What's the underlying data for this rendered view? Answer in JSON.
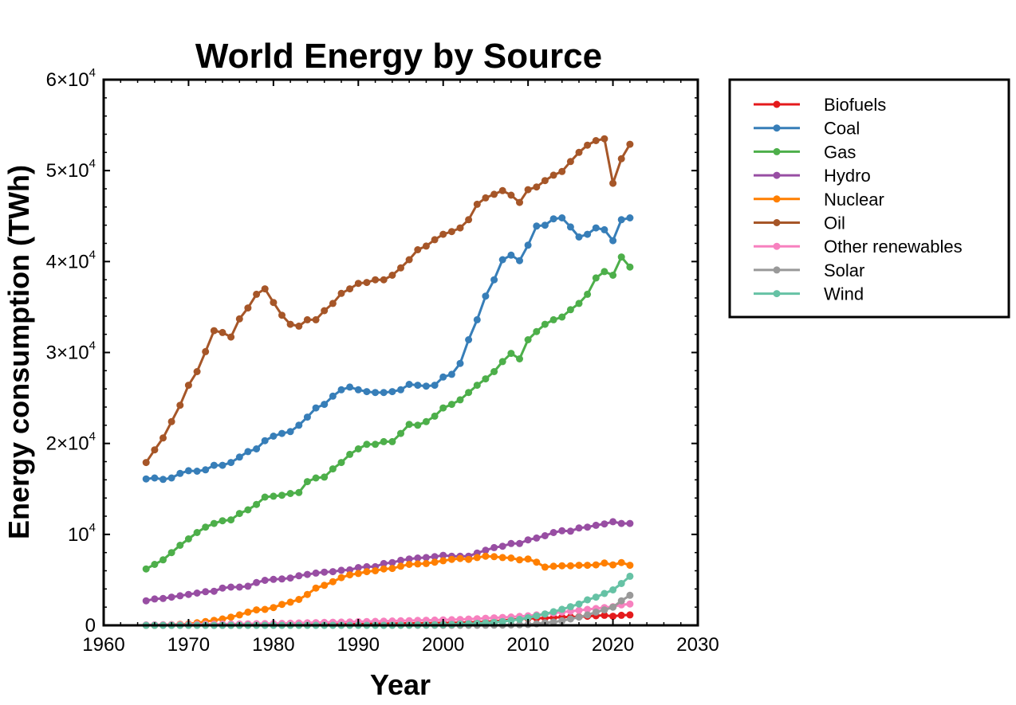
{
  "chart_data": {
    "type": "line",
    "title": "World Energy by Source",
    "xlabel": "Year",
    "ylabel": "Energy consumption (TWh)",
    "xlim": [
      1960,
      2030
    ],
    "ylim": [
      0,
      60000
    ],
    "x_ticks": [
      1960,
      1970,
      1980,
      1990,
      2000,
      2010,
      2020,
      2030
    ],
    "y_ticks": [
      {
        "value": 0,
        "mantissa": "0",
        "exp": ""
      },
      {
        "value": 10000,
        "mantissa": "10",
        "exp": "4"
      },
      {
        "value": 20000,
        "mantissa": "2×10",
        "exp": "4"
      },
      {
        "value": 30000,
        "mantissa": "3×10",
        "exp": "4"
      },
      {
        "value": 40000,
        "mantissa": "4×10",
        "exp": "4"
      },
      {
        "value": 50000,
        "mantissa": "5×10",
        "exp": "4"
      },
      {
        "value": 60000,
        "mantissa": "6×10",
        "exp": "4"
      }
    ],
    "legend_position": "outside-right",
    "x": [
      1965,
      1966,
      1967,
      1968,
      1969,
      1970,
      1971,
      1972,
      1973,
      1974,
      1975,
      1976,
      1977,
      1978,
      1979,
      1980,
      1981,
      1982,
      1983,
      1984,
      1985,
      1986,
      1987,
      1988,
      1989,
      1990,
      1991,
      1992,
      1993,
      1994,
      1995,
      1996,
      1997,
      1998,
      1999,
      2000,
      2001,
      2002,
      2003,
      2004,
      2005,
      2006,
      2007,
      2008,
      2009,
      2010,
      2011,
      2012,
      2013,
      2014,
      2015,
      2016,
      2017,
      2018,
      2019,
      2020,
      2021,
      2022
    ],
    "series": [
      {
        "name": "Biofuels",
        "color": "#e41a1c",
        "values": [
          0,
          0,
          0,
          0,
          0,
          0,
          0,
          0,
          0,
          0,
          0,
          10,
          20,
          30,
          40,
          60,
          70,
          80,
          90,
          100,
          110,
          120,
          130,
          140,
          150,
          160,
          170,
          180,
          190,
          200,
          210,
          220,
          230,
          240,
          250,
          260,
          270,
          290,
          320,
          350,
          390,
          450,
          530,
          620,
          680,
          750,
          780,
          800,
          850,
          900,
          930,
          950,
          1000,
          1050,
          1100,
          1000,
          1100,
          1150
        ]
      },
      {
        "name": "Coal",
        "color": "#377eb8",
        "values": [
          16100,
          16200,
          16050,
          16200,
          16700,
          17000,
          16950,
          17100,
          17600,
          17600,
          17900,
          18500,
          19100,
          19400,
          20300,
          20800,
          21100,
          21300,
          22000,
          22900,
          23900,
          24300,
          25200,
          25900,
          26200,
          25900,
          25700,
          25600,
          25600,
          25700,
          25900,
          26500,
          26400,
          26300,
          26400,
          27300,
          27600,
          28800,
          31400,
          33600,
          36200,
          38000,
          40200,
          40700,
          40100,
          41800,
          43900,
          44000,
          44700,
          44800,
          43800,
          42700,
          43000,
          43700,
          43500,
          42300,
          44600,
          44800
        ]
      },
      {
        "name": "Gas",
        "color": "#4daf4a",
        "values": [
          6200,
          6700,
          7200,
          8000,
          8800,
          9500,
          10200,
          10800,
          11200,
          11500,
          11600,
          12300,
          12700,
          13300,
          14100,
          14200,
          14300,
          14500,
          14600,
          15800,
          16200,
          16300,
          17200,
          17900,
          18800,
          19400,
          19900,
          19900,
          20200,
          20200,
          21100,
          22100,
          22000,
          22400,
          23000,
          23900,
          24300,
          24800,
          25600,
          26400,
          27100,
          27900,
          29000,
          29900,
          29300,
          31400,
          32300,
          33100,
          33600,
          33900,
          34700,
          35400,
          36400,
          38200,
          38900,
          38500,
          40500,
          39400
        ]
      },
      {
        "name": "Hydro",
        "color": "#984ea3",
        "values": [
          2700,
          2900,
          2950,
          3100,
          3250,
          3400,
          3550,
          3700,
          3750,
          4100,
          4200,
          4200,
          4300,
          4700,
          4950,
          5050,
          5100,
          5200,
          5450,
          5600,
          5750,
          5850,
          5900,
          6050,
          6100,
          6350,
          6450,
          6450,
          6800,
          6900,
          7150,
          7300,
          7400,
          7450,
          7550,
          7700,
          7600,
          7600,
          7600,
          7950,
          8250,
          8550,
          8700,
          9000,
          9000,
          9400,
          9600,
          9850,
          10200,
          10400,
          10350,
          10700,
          10800,
          11000,
          11150,
          11400,
          11200,
          11200
        ]
      },
      {
        "name": "Nuclear",
        "color": "#ff7f00",
        "values": [
          0,
          0,
          50,
          80,
          120,
          160,
          280,
          420,
          550,
          700,
          900,
          1150,
          1450,
          1700,
          1750,
          1950,
          2300,
          2550,
          2850,
          3400,
          4100,
          4400,
          4800,
          5250,
          5550,
          5700,
          5900,
          6000,
          6200,
          6250,
          6500,
          6700,
          6750,
          6800,
          6950,
          7100,
          7250,
          7350,
          7250,
          7450,
          7600,
          7550,
          7450,
          7400,
          7200,
          7300,
          6950,
          6400,
          6500,
          6550,
          6550,
          6600,
          6600,
          6650,
          6850,
          6650,
          6900,
          6600
        ]
      },
      {
        "name": "Oil",
        "color": "#a65628",
        "values": [
          17900,
          19300,
          20600,
          22400,
          24200,
          26400,
          27900,
          30100,
          32400,
          32200,
          31700,
          33700,
          34900,
          36400,
          37000,
          35500,
          34100,
          33100,
          32900,
          33600,
          33600,
          34600,
          35400,
          36500,
          37000,
          37600,
          37700,
          38000,
          38000,
          38500,
          39300,
          40200,
          41300,
          41700,
          42400,
          43000,
          43300,
          43700,
          44600,
          46300,
          47000,
          47400,
          47800,
          47300,
          46500,
          47900,
          48200,
          48900,
          49500,
          49900,
          51000,
          52000,
          52800,
          53300,
          53500,
          48600,
          51300,
          52900
        ]
      },
      {
        "name": "Other renewables",
        "color": "#f781bf",
        "values": [
          50,
          60,
          70,
          80,
          90,
          100,
          110,
          120,
          130,
          140,
          150,
          160,
          170,
          180,
          190,
          200,
          220,
          240,
          260,
          280,
          300,
          320,
          340,
          360,
          380,
          400,
          420,
          440,
          460,
          480,
          500,
          520,
          540,
          560,
          580,
          600,
          620,
          650,
          690,
          730,
          780,
          820,
          870,
          920,
          980,
          1050,
          1150,
          1250,
          1350,
          1450,
          1550,
          1650,
          1750,
          1850,
          1950,
          2050,
          2250,
          2350
        ]
      },
      {
        "name": "Solar",
        "color": "#999999",
        "values": [
          0,
          0,
          0,
          0,
          0,
          0,
          0,
          0,
          0,
          0,
          0,
          0,
          0,
          0,
          0,
          0,
          0,
          0,
          0,
          0,
          0,
          0,
          0,
          0,
          0,
          0,
          0,
          0,
          0,
          0,
          0,
          0,
          0,
          0,
          0,
          0,
          0,
          0,
          0,
          0,
          10,
          20,
          30,
          40,
          60,
          90,
          170,
          280,
          360,
          500,
          700,
          900,
          1150,
          1450,
          1700,
          2000,
          2700,
          3300
        ]
      },
      {
        "name": "Wind",
        "color": "#66c2a5",
        "values": [
          0,
          0,
          0,
          0,
          0,
          0,
          0,
          0,
          0,
          0,
          0,
          0,
          0,
          0,
          0,
          0,
          0,
          0,
          0,
          0,
          0,
          0,
          0,
          0,
          0,
          0,
          0,
          0,
          0,
          10,
          20,
          30,
          40,
          50,
          60,
          80,
          100,
          140,
          170,
          220,
          270,
          330,
          420,
          540,
          660,
          830,
          1040,
          1250,
          1500,
          1760,
          2050,
          2350,
          2800,
          3100,
          3500,
          3900,
          4600,
          5400
        ]
      }
    ]
  }
}
